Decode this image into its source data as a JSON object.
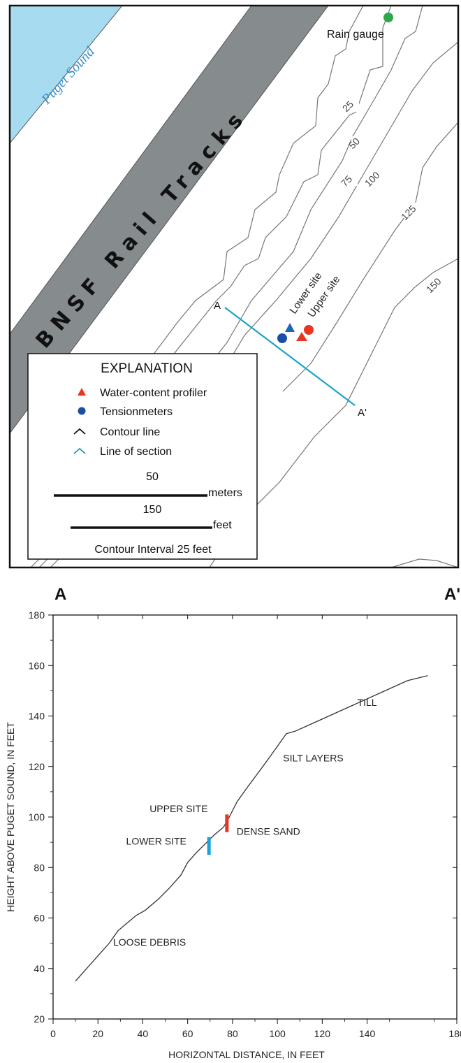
{
  "map": {
    "water_label": "Puget Sound",
    "rail_label": "BNSF Rail Tracks",
    "rain_gauge_label": "Rain gauge",
    "contour_labels": [
      "25",
      "50",
      "75",
      "100",
      "125",
      "150"
    ],
    "section_start_label": "A",
    "section_end_label": "A'",
    "lower_site_label": "Lower site",
    "upper_site_label": "Upper site",
    "colors": {
      "water": "#a7dcf0",
      "water_text": "#3a8fc9",
      "rail": "#858a8c",
      "section_line": "#1aa3c9",
      "profiler_red": "#e8351f",
      "profiler_blue": "#1b67b3",
      "tensiometer_blue": "#1a4fa8",
      "tensiometer_red": "#e8351f",
      "rain_gauge": "#2ca84a",
      "contour": "#777777"
    },
    "legend": {
      "title": "EXPLANATION",
      "profiler": "Water-content profiler",
      "tensiometers": "Tensionmeters",
      "contour": "Contour line",
      "section": "Line of section",
      "scale_meters_value": "50",
      "scale_meters_unit": "meters",
      "scale_feet_value": "150",
      "scale_feet_unit": "feet",
      "interval": "Contour Interval 25 feet"
    }
  },
  "section": {
    "label_left": "A",
    "label_right": "A'"
  },
  "chart_data": {
    "type": "line",
    "xlabel": "HORIZONTAL DISTANCE, IN FEET",
    "ylabel": "HEIGHT ABOVE PUGET SOUND, IN FEET",
    "xlim": [
      0,
      180
    ],
    "ylim": [
      20,
      180
    ],
    "x_ticks": [
      "0",
      "20",
      "40",
      "60",
      "80",
      "100",
      "120",
      "140",
      "180"
    ],
    "y_ticks": [
      "20",
      "40",
      "60",
      "80",
      "100",
      "120",
      "140",
      "160",
      "180"
    ],
    "series": [
      {
        "x": [
          10,
          14,
          20,
          25,
          29,
          33,
          37,
          41,
          47,
          52,
          57,
          60,
          64,
          68,
          72,
          76,
          78,
          82,
          86,
          91,
          96,
          100,
          104,
          108,
          118,
          128,
          138,
          148,
          158,
          167
        ],
        "y": [
          35,
          39,
          45,
          50,
          55,
          58,
          61,
          63,
          67.5,
          72,
          77,
          82,
          86,
          89.5,
          93,
          96,
          99,
          106,
          111,
          117,
          123,
          128,
          133,
          134,
          138,
          142,
          146,
          150,
          154,
          156
        ]
      }
    ],
    "annotations": [
      {
        "text": "TILL",
        "x": 140,
        "y": 144
      },
      {
        "text": "SILT LAYERS",
        "x": 116,
        "y": 122
      },
      {
        "text": "UPPER SITE",
        "x": 56,
        "y": 102
      },
      {
        "text": "DENSE SAND",
        "x": 96,
        "y": 93
      },
      {
        "text": "LOWER SITE",
        "x": 46,
        "y": 89
      },
      {
        "text": "LOOSE DEBRIS",
        "x": 43,
        "y": 49
      }
    ],
    "site_markers": [
      {
        "name": "UPPER SITE",
        "x": 77.5,
        "y_top": 101,
        "y_bottom": 94,
        "color": "#e8351f"
      },
      {
        "name": "LOWER SITE",
        "x": 69.5,
        "y_top": 92,
        "y_bottom": 85,
        "color": "#1aa3d9"
      }
    ]
  }
}
